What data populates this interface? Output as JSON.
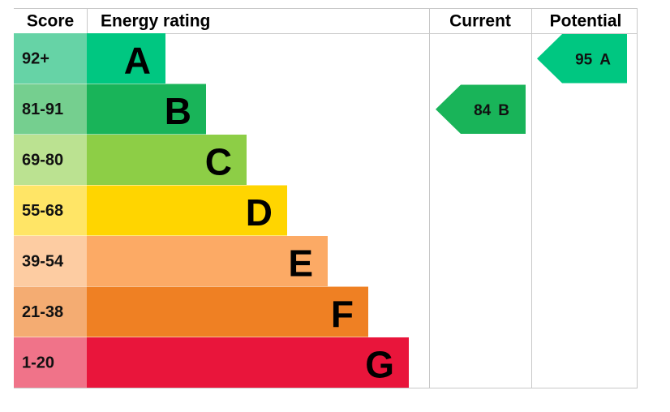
{
  "header": {
    "score": "Score",
    "rating": "Energy rating",
    "current": "Current",
    "potential": "Potential"
  },
  "bands": [
    {
      "score": "92+",
      "letter": "A",
      "color": "#00c781",
      "score_color": "#66d3a6"
    },
    {
      "score": "81-91",
      "letter": "B",
      "color": "#19b459",
      "score_color": "#75cf8f"
    },
    {
      "score": "69-80",
      "letter": "C",
      "color": "#8dce46",
      "score_color": "#bbe291"
    },
    {
      "score": "55-68",
      "letter": "D",
      "color": "#ffd500",
      "score_color": "#ffe566"
    },
    {
      "score": "39-54",
      "letter": "E",
      "color": "#fcaa65",
      "score_color": "#fdcca2"
    },
    {
      "score": "21-38",
      "letter": "F",
      "color": "#ef8023",
      "score_color": "#f4ac72"
    },
    {
      "score": "1-20",
      "letter": "G",
      "color": "#e9153b",
      "score_color": "#f07389"
    }
  ],
  "current": {
    "value": 84,
    "letter": "B"
  },
  "potential": {
    "value": 95,
    "letter": "A"
  }
}
